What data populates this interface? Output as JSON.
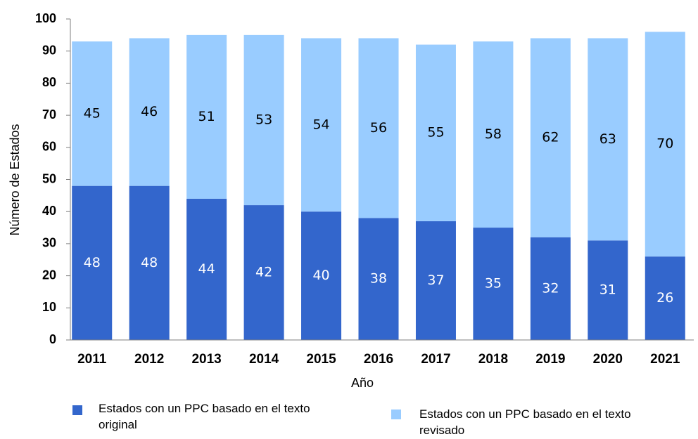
{
  "chart_data": {
    "type": "stacked_bar",
    "x_label": "Año",
    "y_label": "Número de Estados",
    "categories": [
      "2011",
      "2012",
      "2013",
      "2014",
      "2015",
      "2016",
      "2017",
      "2018",
      "2019",
      "2020",
      "2021"
    ],
    "series": [
      {
        "name": "Estados con un PPC basado en el texto original",
        "color": "#3366cc",
        "values": [
          48,
          48,
          44,
          42,
          40,
          38,
          37,
          35,
          32,
          31,
          26
        ]
      },
      {
        "name": "Estados con un PPC basado en el texto revisado",
        "color": "#99ccff",
        "values": [
          45,
          46,
          51,
          53,
          54,
          56,
          55,
          58,
          62,
          63,
          70
        ]
      }
    ],
    "ylim": [
      0,
      100
    ],
    "yticks": [
      0,
      10,
      20,
      30,
      40,
      50,
      60,
      70,
      80,
      90,
      100
    ],
    "grid": false
  }
}
